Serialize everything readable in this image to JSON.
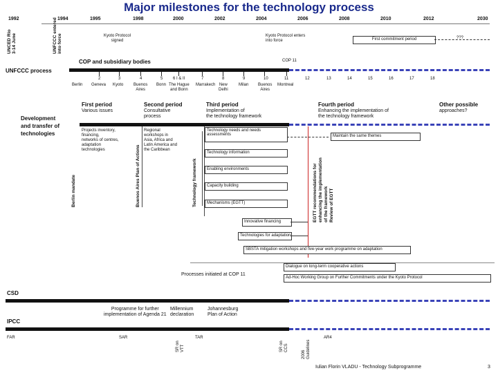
{
  "title": "Major milestones for the technology process",
  "years": [
    "1992",
    "1994",
    "1995",
    "1998",
    "2000",
    "2002",
    "2004",
    "2006",
    "2008",
    "2010",
    "2012",
    "2030"
  ],
  "left_labels": {
    "unced": "UNCED Rio\n3-14 June",
    "unfccc_force": "UNFCCC entered\ninto force",
    "unfccc_process": "UNFCCC process",
    "development": "Development\nand transfer of\ntechnologies",
    "berlin": "Berlin mandate",
    "buenos": "Buenos Aires Plan of Actions",
    "techfw": "Technology framework"
  },
  "top_events": {
    "kyoto_signed": "Kyoto Protocol\nsigned",
    "kyoto_force": "Kyoto Protocol enters\ninto force",
    "first_commitment": "First commitment period",
    "unknown": "???"
  },
  "cop": {
    "header": "COP and subsidiary bodies",
    "cop11": "COP 11",
    "numbers": [
      "2",
      "3",
      "4",
      "5",
      "6 I & II",
      "7",
      "8",
      "9",
      "10",
      "11",
      "12",
      "13",
      "14",
      "15",
      "16",
      "17",
      "18"
    ],
    "cities": [
      "Berlin",
      "Geneva",
      "Kyoto",
      "Buenos\nAires",
      "Bonn",
      "The Hague\nand Bonn",
      "Marrakech",
      "New\nDelhi",
      "Milan",
      "Buenos\nAires",
      "Montreal"
    ]
  },
  "periods": [
    {
      "name": "First period",
      "desc": "Various issues"
    },
    {
      "name": "Second period",
      "desc": "Consultative\nprocess"
    },
    {
      "name": "Third period",
      "desc": "Implementation of\nthe technology framework"
    },
    {
      "name": "Fourth period",
      "desc": "Enhancing the implementation of\nthe technology framework"
    },
    {
      "name": "Other possible",
      "desc": "approaches?"
    }
  ],
  "first_period_items": "Projects inventory,\nfinancing,\nnetworks of centres,\nadaptation\ntechnologies",
  "second_period_items": "Regional\nworkshops in\nAsia, Africa and\nLatin America and\nthe Caribbean",
  "framework_boxes": [
    "Technology needs and needs\nassessments",
    "Technology information",
    "Enabling environments",
    "Capacity building",
    "Mechanisms (EGTT)"
  ],
  "maintain": "Maintain the same themes",
  "egtt_vertical": "EGTT recommendations for\nenhancing the implementation\nof the framework\nReview of EGTT",
  "innovative_financing": "Innovative financing",
  "adaptation_tech": "Technologies for adaptation",
  "sbsta": "SBSTA mitigation workshops and five-year work programme on adaptation",
  "processes_cop11": "Processes initiated at COP 11",
  "dialogue": "Dialogue on long-term cooperative actions",
  "awg": "Ad-Hoc Working Group on Further Commitments under the Kyoto Protocol",
  "csd": {
    "label": "CSD",
    "programme": "Programme for further\nimplementation of Agenda 21",
    "millennium": "Millennium\ndeclaration",
    "johannesburg": "Johannesburg\nPlan of Action"
  },
  "ipcc": {
    "label": "IPCC",
    "far": "FAR",
    "sar": "SAR",
    "sr_vtt": "SR on\nVTT",
    "tar": "TAR",
    "sr_ccs": "SR on\nCCS",
    "guidelines": "2006\nGuidelines",
    "ar4": "AR4"
  },
  "footer": {
    "author": "Iulian Florin VLADU - Technology Subprogramme",
    "page": "3"
  }
}
